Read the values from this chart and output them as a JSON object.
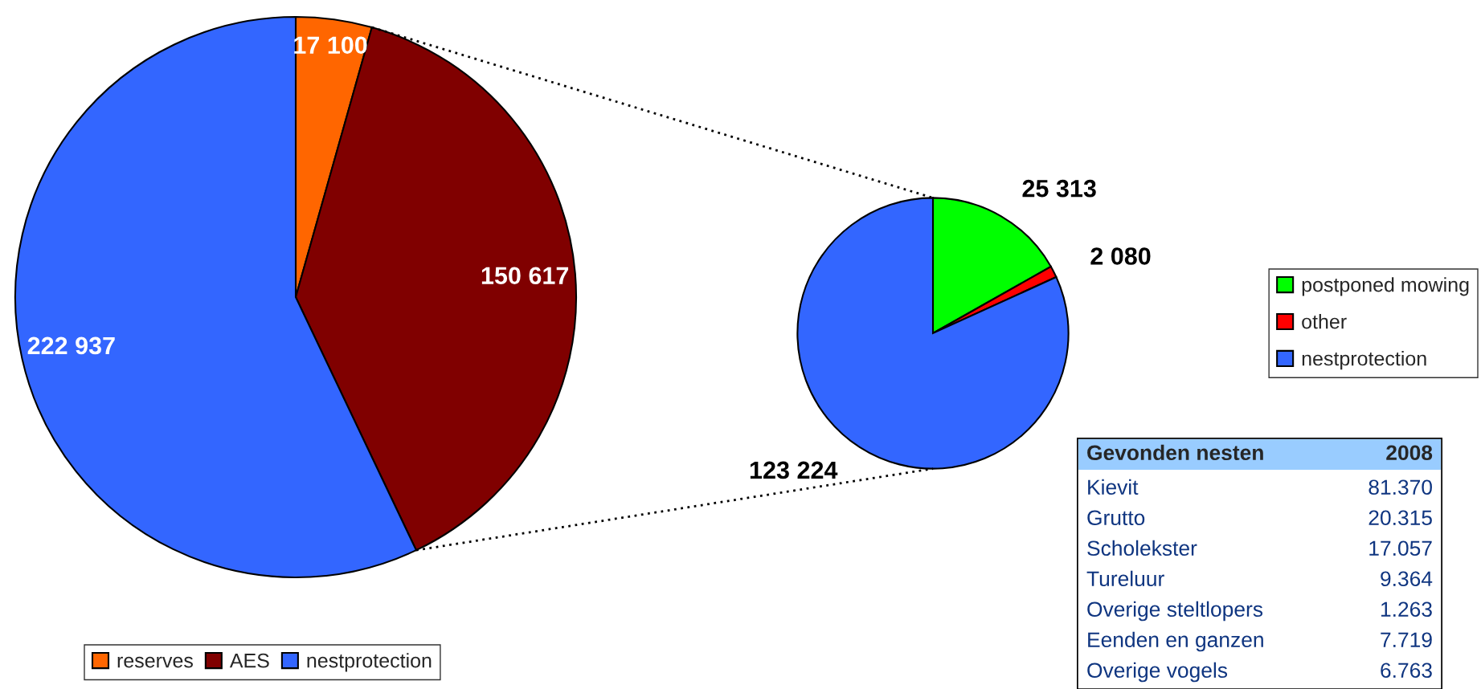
{
  "chart_data": [
    {
      "type": "pie",
      "categories": [
        "reserves",
        "AES",
        "nestprotection"
      ],
      "values": [
        17100,
        150617,
        222937
      ],
      "colors": [
        "#ff6600",
        "#800000",
        "#3366ff"
      ],
      "value_labels": [
        "17 100",
        "150 617",
        "222 937"
      ],
      "legend": "bottom"
    },
    {
      "type": "pie",
      "categories": [
        "postponed mowing",
        "other",
        "nestprotection"
      ],
      "values": [
        25313,
        2080,
        123224
      ],
      "colors": [
        "#00ff00",
        "#ff0000",
        "#3366ff"
      ],
      "value_labels": [
        "25 313",
        "2 080",
        "123 224"
      ],
      "legend": "right"
    },
    {
      "type": "other",
      "title": "Gevonden nesten",
      "subtitle": "2008",
      "categories": [
        "Kievit",
        "Grutto",
        "Scholekster",
        "Tureluur",
        "Overige steltlopers",
        "Eenden en ganzen",
        "Overige vogels"
      ],
      "value_labels": [
        "81.370",
        "20.315",
        "17.057",
        "9.364",
        "1.263",
        "7.719",
        "6.763"
      ]
    }
  ]
}
